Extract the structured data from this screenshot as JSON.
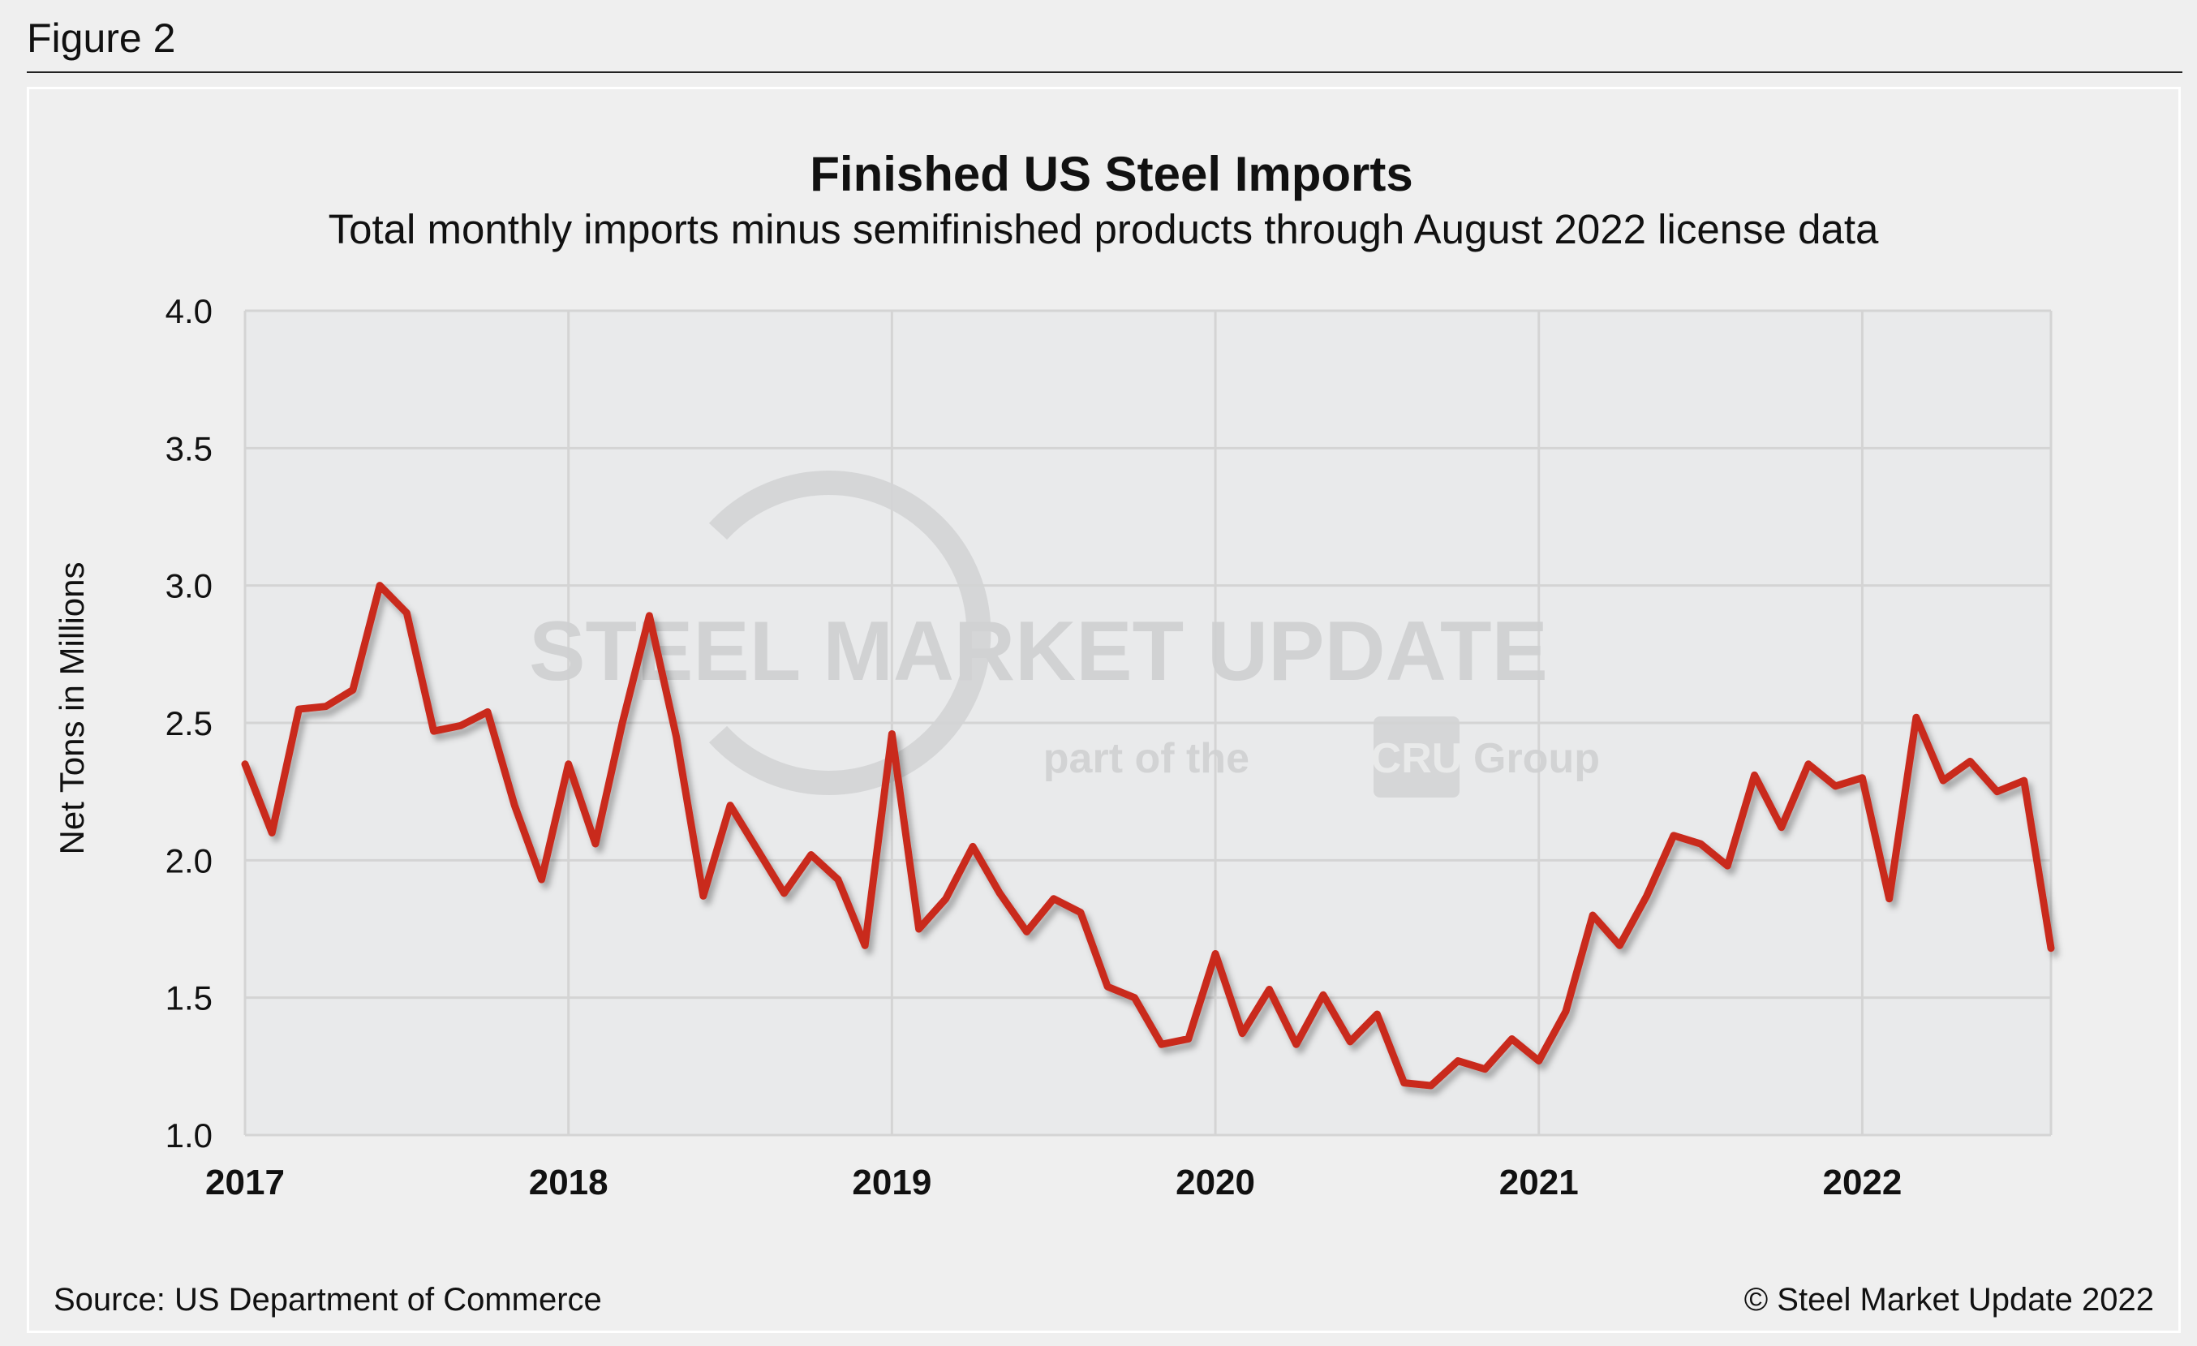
{
  "figure_label": "Figure 2",
  "source": "Source: US Department of Commerce",
  "copyright": "© Steel Market Update 2022",
  "watermark": {
    "brand": "STEEL MARKET UPDATE",
    "tagline_pre": "part of the",
    "tagline_logo": "CRU",
    "tagline_post": "Group"
  },
  "colors": {
    "series": "#c9291e",
    "plot_bg": "#e9eaeb",
    "grid": "#d4d4d4"
  },
  "chart_data": {
    "type": "line",
    "title": "Finished US Steel Imports",
    "subtitle": "Total monthly imports minus semifinished products through August 2022 license data",
    "xlabel": "",
    "ylabel": "Net Tons in Millions",
    "ylim": [
      1.0,
      4.0
    ],
    "yticks": [
      "1.0",
      "1.5",
      "2.0",
      "2.5",
      "3.0",
      "3.5",
      "4.0"
    ],
    "xticks": [
      "2017",
      "2018",
      "2019",
      "2020",
      "2021",
      "2022"
    ],
    "x_start": "2017-01",
    "x_end": "2022-08",
    "frequency": "monthly",
    "grid": true,
    "values": [
      2.35,
      2.1,
      2.55,
      2.56,
      2.62,
      3.0,
      2.9,
      2.47,
      2.49,
      2.54,
      2.2,
      1.93,
      2.35,
      2.06,
      2.5,
      2.89,
      2.45,
      1.87,
      2.2,
      2.04,
      1.88,
      2.02,
      1.93,
      1.69,
      2.46,
      1.75,
      1.86,
      2.05,
      1.88,
      1.74,
      1.86,
      1.81,
      1.54,
      1.5,
      1.33,
      1.35,
      1.66,
      1.37,
      1.53,
      1.33,
      1.51,
      1.34,
      1.44,
      1.19,
      1.18,
      1.27,
      1.24,
      1.35,
      1.27,
      1.45,
      1.8,
      1.69,
      1.87,
      2.09,
      2.06,
      1.98,
      2.31,
      2.12,
      2.35,
      2.27,
      2.3,
      1.86,
      2.52,
      2.29,
      2.36,
      2.25,
      2.29,
      1.68
    ]
  }
}
